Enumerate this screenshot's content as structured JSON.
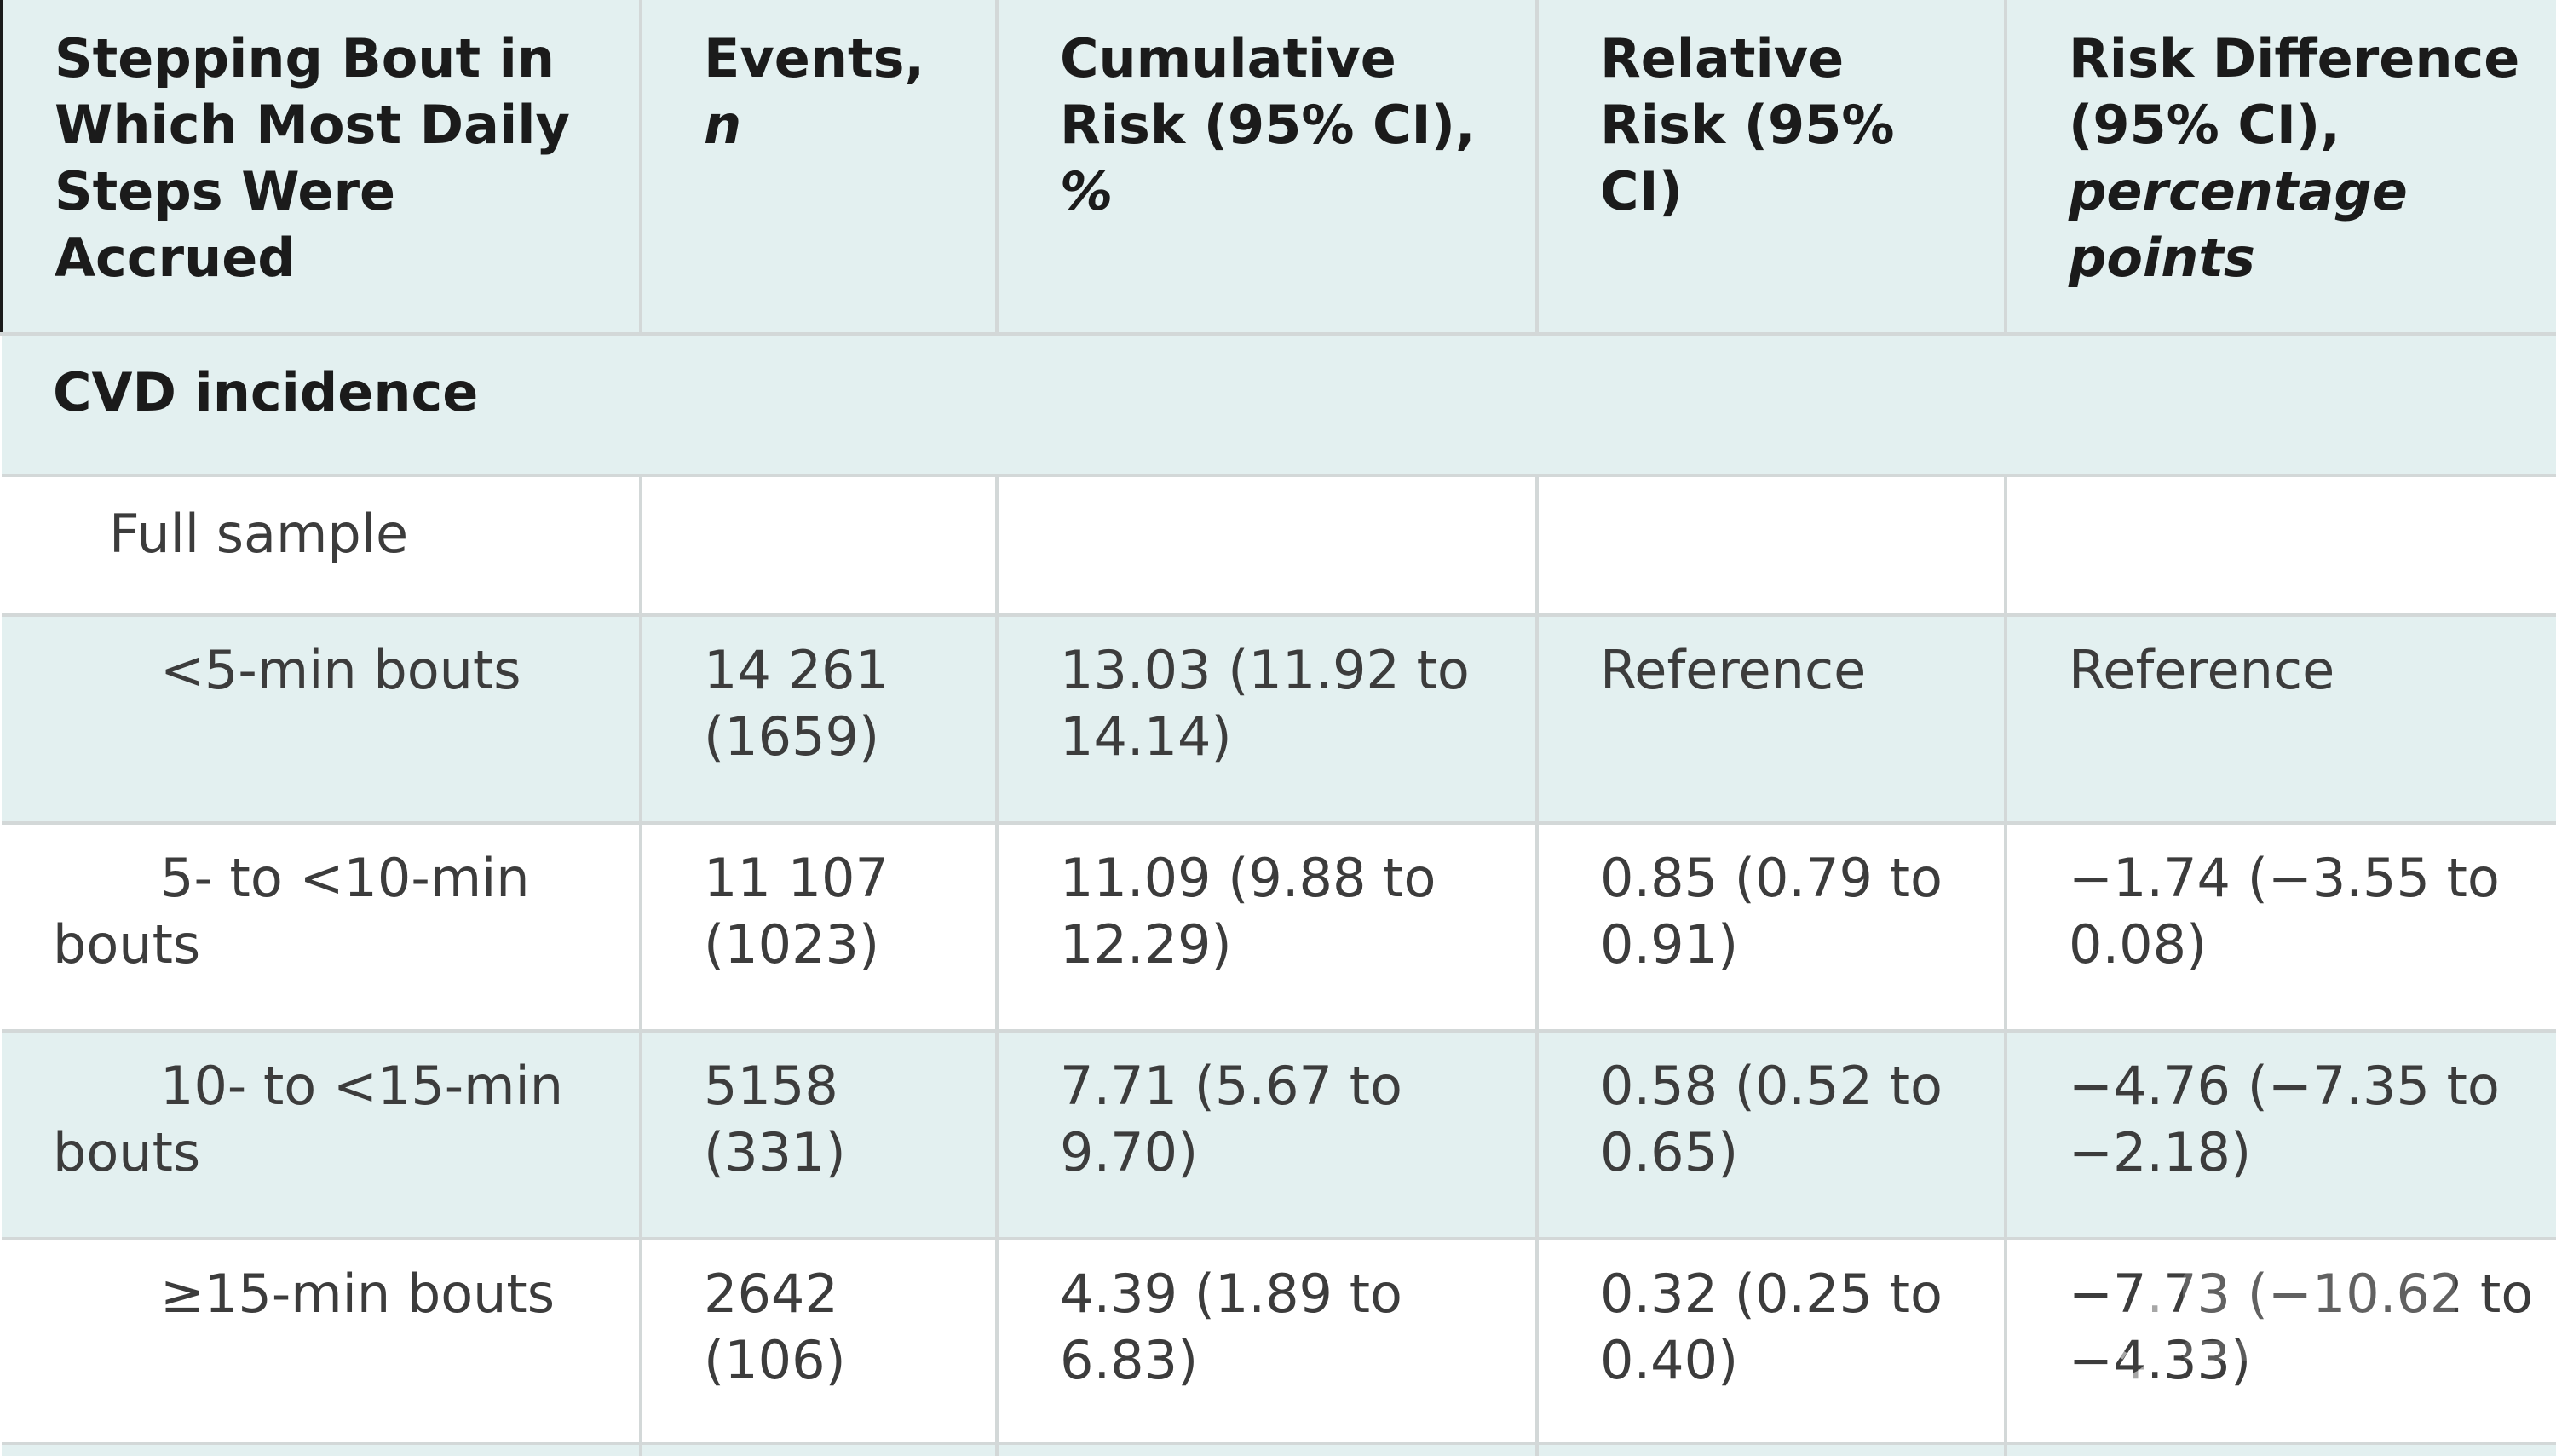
{
  "table": {
    "headers": [
      {
        "text": "Stepping Bout in Which Most Daily Steps Were Accrued",
        "italic": ""
      },
      {
        "text": "Events,",
        "italic": "n"
      },
      {
        "text": "Cumulative Risk (95% CI),",
        "italic": "%"
      },
      {
        "text": "Relative Risk (95% CI)",
        "italic": ""
      },
      {
        "text": "Risk Difference (95% CI),",
        "italic": "percentage points"
      }
    ],
    "section": "CVD incidence",
    "subgroup": "Full sample",
    "rows": [
      {
        "label": "<5-min bouts",
        "events": "14 261 (1659)",
        "cumrisk": "13.03 (11.92 to 14.14)",
        "rr": "Reference",
        "rd": "Reference"
      },
      {
        "label": "5- to <10-min bouts",
        "events": "11 107 (1023)",
        "cumrisk": "11.09 (9.88 to 12.29)",
        "rr": "0.85 (0.79 to 0.91)",
        "rd": "−1.74 (−3.55 to 0.08)"
      },
      {
        "label": "10- to <15-min bouts",
        "events": "5158 (331)",
        "cumrisk": "7.71 (5.67 to 9.70)",
        "rr": "0.58 (0.52 to 0.65)",
        "rd": "−4.76 (−7.35 to −2.18)"
      },
      {
        "label": "≥15-min bouts",
        "events": "2642 (106)",
        "cumrisk": "4.39 (1.89 to 6.83)",
        "rr": "0.32 (0.25 to 0.40)",
        "rd": "−7.73 (−10.62 to −4.33)"
      }
    ]
  },
  "colors": {
    "header_bg": "#e3f0f0",
    "border": "#d3d8d8",
    "text": "#333333"
  }
}
